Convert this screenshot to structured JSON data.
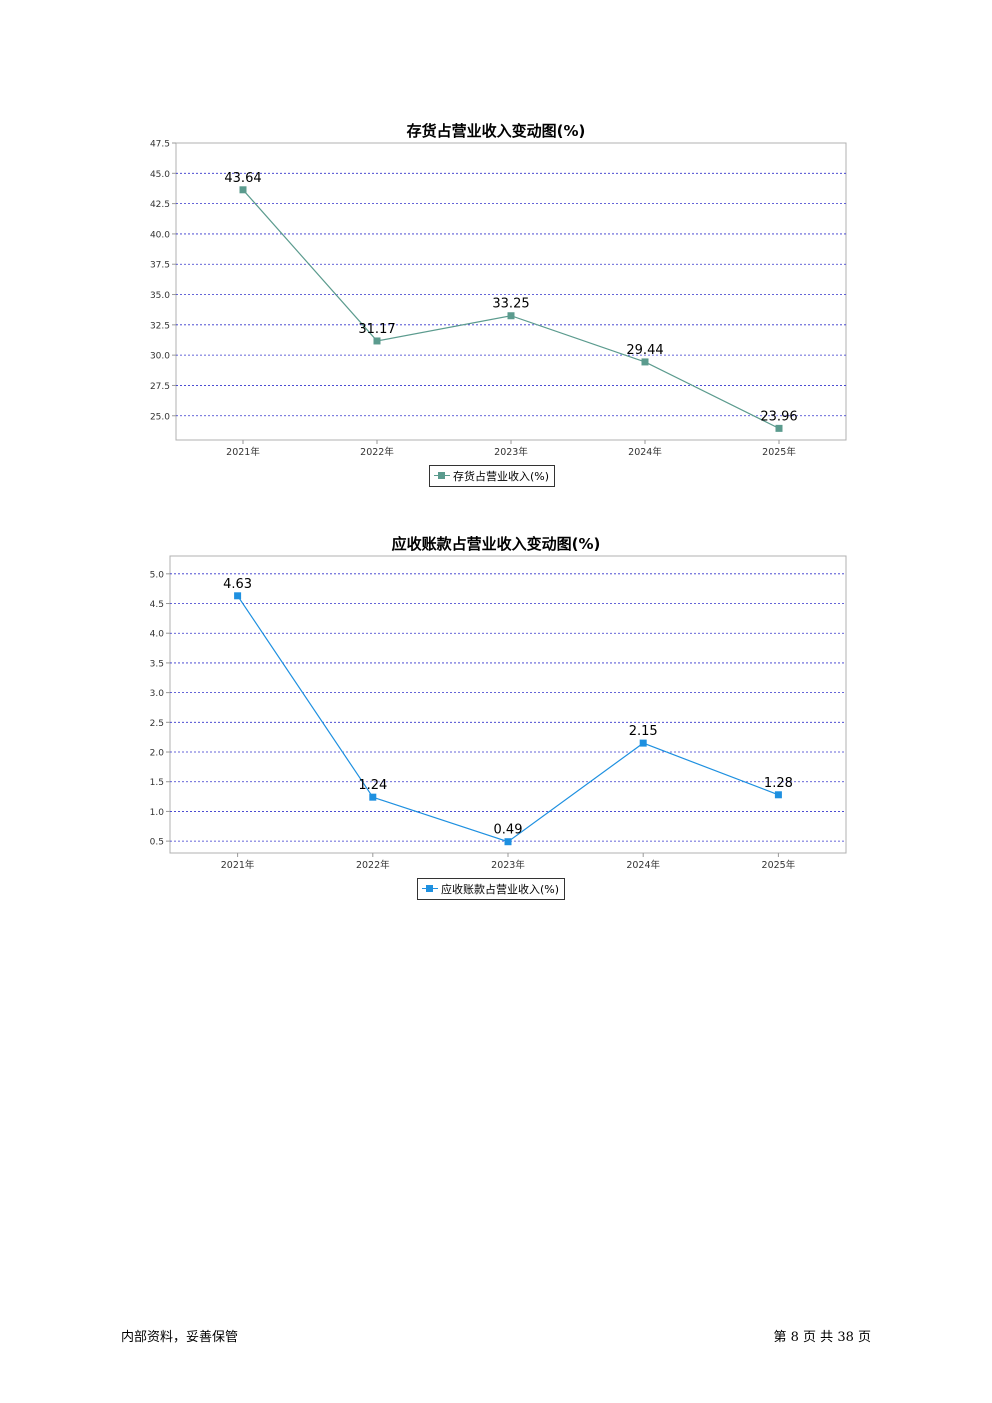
{
  "chart_data": [
    {
      "type": "line",
      "title": "存货占营业收入变动图(%)",
      "categories": [
        "2021年",
        "2022年",
        "2023年",
        "2024年",
        "2025年"
      ],
      "series": [
        {
          "name": "存货占营业收入(%)",
          "values": [
            43.64,
            31.17,
            33.25,
            29.44,
            23.96
          ],
          "color": "#5b9b8e"
        }
      ],
      "data_labels": [
        "43.64",
        "31.17",
        "33.25",
        "29.44",
        "23.96"
      ],
      "ylim": [
        23.0,
        47.5
      ],
      "yticks": [
        "25.0",
        "27.5",
        "30.0",
        "32.5",
        "35.0",
        "37.5",
        "40.0",
        "42.5",
        "45.0",
        "47.5"
      ],
      "ytick_values": [
        25.0,
        27.5,
        30.0,
        32.5,
        35.0,
        37.5,
        40.0,
        42.5,
        45.0,
        47.5
      ],
      "grid": true,
      "legend": "bottom"
    },
    {
      "type": "line",
      "title": "应收账款占营业收入变动图(%)",
      "categories": [
        "2021年",
        "2022年",
        "2023年",
        "2024年",
        "2025年"
      ],
      "series": [
        {
          "name": "应收账款占营业收入(%)",
          "values": [
            4.63,
            1.24,
            0.49,
            2.15,
            1.28
          ],
          "color": "#1e90e0"
        }
      ],
      "data_labels": [
        "4.63",
        "1.24",
        "0.49",
        "2.15",
        "1.28"
      ],
      "ylim": [
        0.3,
        5.3
      ],
      "yticks": [
        "0.5",
        "1.0",
        "1.5",
        "2.0",
        "2.5",
        "3.0",
        "3.5",
        "4.0",
        "4.5",
        "5.0"
      ],
      "ytick_values": [
        0.5,
        1.0,
        1.5,
        2.0,
        2.5,
        3.0,
        3.5,
        4.0,
        4.5,
        5.0
      ],
      "grid": true,
      "legend": "bottom"
    }
  ],
  "footer": {
    "left": "内部资料，妥善保管",
    "right": "第 8 页 共 38 页"
  },
  "colors": {
    "gridline": "#3333cc",
    "axis": "#999999"
  }
}
